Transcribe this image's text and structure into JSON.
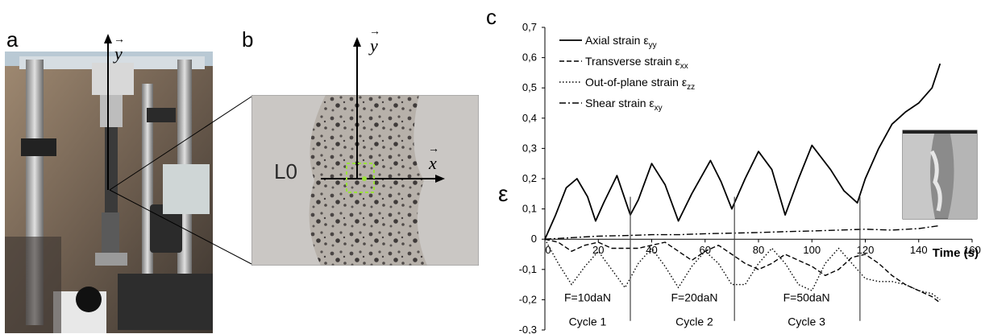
{
  "figure": {
    "panels": {
      "a": {
        "letter": "a",
        "y_label": "y"
      },
      "b": {
        "letter": "b",
        "x_label": "x",
        "y_label": "y",
        "gauge_label": "L0"
      },
      "c": {
        "letter": "c"
      }
    },
    "colors": {
      "curve": "#000000",
      "roi_box": "#9be23a"
    }
  },
  "chart_data": {
    "type": "line",
    "title": "",
    "xlabel": "Time (s)",
    "ylabel": "ε",
    "xlim": [
      0,
      160
    ],
    "ylim": [
      -0.3,
      0.7
    ],
    "x_ticks": [
      "0",
      "20",
      "40",
      "60",
      "80",
      "100",
      "120",
      "140",
      "160"
    ],
    "y_ticks": [
      "0,7",
      "0,6",
      "0,5",
      "0,4",
      "0,3",
      "0,2",
      "0,1",
      "0",
      "-0,1",
      "-0,2",
      "-0,3"
    ],
    "legend_position": "top-left",
    "series": [
      {
        "name": "Axial strain ε",
        "subscript": "yy",
        "style": "solid",
        "x": [
          0,
          4,
          8,
          12,
          16,
          19,
          22,
          27,
          32,
          35,
          40,
          45,
          50,
          55,
          62,
          66,
          70,
          75,
          80,
          85,
          90,
          95,
          100,
          107,
          112,
          117,
          120,
          125,
          130,
          135,
          140,
          145,
          148
        ],
        "y": [
          0.0,
          0.08,
          0.17,
          0.2,
          0.14,
          0.06,
          0.12,
          0.21,
          0.08,
          0.13,
          0.25,
          0.18,
          0.06,
          0.15,
          0.26,
          0.19,
          0.1,
          0.2,
          0.29,
          0.23,
          0.08,
          0.2,
          0.31,
          0.23,
          0.16,
          0.12,
          0.2,
          0.3,
          0.38,
          0.42,
          0.45,
          0.5,
          0.58
        ]
      },
      {
        "name": "Transverse strain ε",
        "subscript": "xx",
        "style": "dashed",
        "x": [
          0,
          5,
          10,
          15,
          20,
          25,
          30,
          35,
          40,
          45,
          50,
          55,
          60,
          65,
          70,
          75,
          80,
          85,
          90,
          95,
          100,
          105,
          110,
          115,
          120,
          125,
          130,
          135,
          140,
          145,
          148
        ],
        "y": [
          0.0,
          -0.01,
          -0.04,
          -0.02,
          -0.01,
          -0.03,
          -0.03,
          -0.03,
          -0.02,
          -0.01,
          -0.04,
          -0.07,
          -0.04,
          -0.02,
          -0.05,
          -0.08,
          -0.1,
          -0.08,
          -0.05,
          -0.07,
          -0.09,
          -0.12,
          -0.1,
          -0.06,
          -0.05,
          -0.08,
          -0.12,
          -0.15,
          -0.17,
          -0.19,
          -0.21
        ]
      },
      {
        "name": "Out-of-plane strain ε",
        "subscript": "zz",
        "style": "dotted",
        "x": [
          0,
          5,
          10,
          15,
          20,
          25,
          30,
          35,
          40,
          45,
          50,
          55,
          60,
          65,
          70,
          75,
          80,
          85,
          90,
          95,
          100,
          105,
          110,
          115,
          120,
          125,
          130,
          135,
          140,
          145,
          148
        ],
        "y": [
          0.0,
          -0.08,
          -0.15,
          -0.09,
          -0.04,
          -0.1,
          -0.16,
          -0.08,
          -0.03,
          -0.09,
          -0.16,
          -0.09,
          -0.04,
          -0.08,
          -0.15,
          -0.15,
          -0.08,
          -0.03,
          -0.08,
          -0.15,
          -0.17,
          -0.08,
          -0.03,
          -0.08,
          -0.13,
          -0.14,
          -0.14,
          -0.15,
          -0.17,
          -0.18,
          -0.2
        ]
      },
      {
        "name": "Shear strain ε",
        "subscript": "xy",
        "style": "dashdot",
        "x": [
          0,
          10,
          20,
          30,
          40,
          50,
          60,
          70,
          80,
          90,
          100,
          110,
          120,
          130,
          140,
          148
        ],
        "y": [
          0.0,
          0.005,
          0.01,
          0.012,
          0.015,
          0.015,
          0.018,
          0.02,
          0.022,
          0.025,
          0.027,
          0.03,
          0.033,
          0.03,
          0.035,
          0.045
        ]
      }
    ],
    "cycle_markers": [
      {
        "x": 32,
        "load": "F=10daN",
        "cycle": "Cycle 1"
      },
      {
        "x": 71,
        "load": "F=20daN",
        "cycle": "Cycle 2"
      },
      {
        "x": 118,
        "load": "F=50daN",
        "cycle": "Cycle 3"
      }
    ]
  }
}
